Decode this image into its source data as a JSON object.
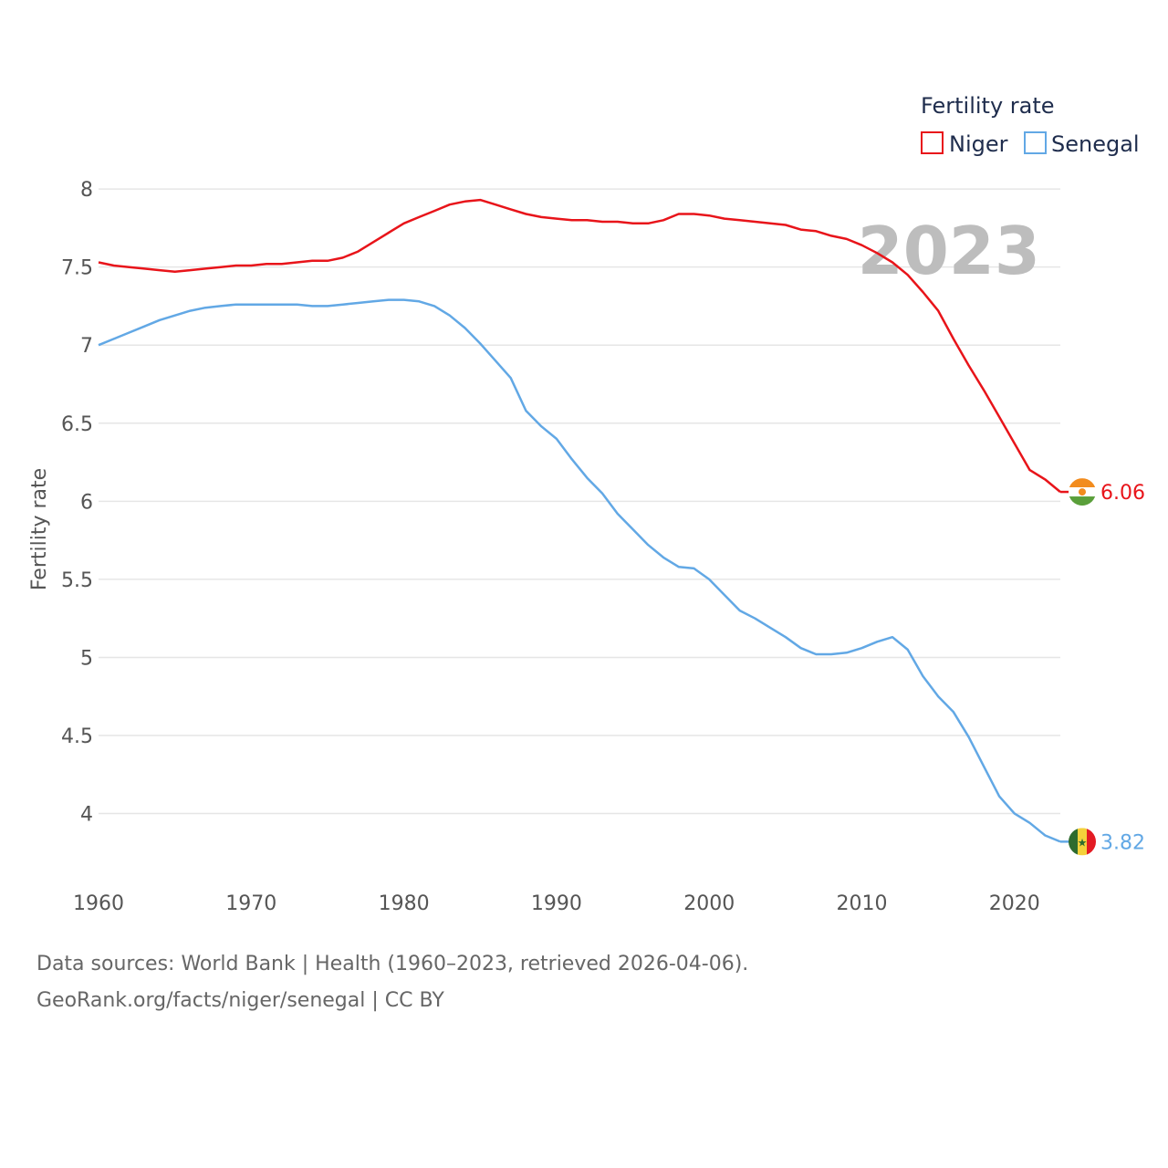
{
  "chart_data": {
    "type": "line",
    "ylabel": "Fertility rate",
    "ylim": [
      3.6,
      8.1
    ],
    "xlim": [
      1960,
      2023
    ],
    "grid": true,
    "legend": {
      "title": "Fertility rate",
      "placement": "top-right"
    },
    "highlight_year": "2023",
    "y_ticks": [
      "4",
      "4.5",
      "5",
      "5.5",
      "6",
      "6.5",
      "7",
      "7.5",
      "8"
    ],
    "x_ticks": [
      "1960",
      "1970",
      "1980",
      "1990",
      "2000",
      "2010",
      "2020"
    ],
    "x": [
      1960,
      1961,
      1962,
      1963,
      1964,
      1965,
      1966,
      1967,
      1968,
      1969,
      1970,
      1971,
      1972,
      1973,
      1974,
      1975,
      1976,
      1977,
      1978,
      1979,
      1980,
      1981,
      1982,
      1983,
      1984,
      1985,
      1986,
      1987,
      1988,
      1989,
      1990,
      1991,
      1992,
      1993,
      1994,
      1995,
      1996,
      1997,
      1998,
      1999,
      2000,
      2001,
      2002,
      2003,
      2004,
      2005,
      2006,
      2007,
      2008,
      2009,
      2010,
      2011,
      2012,
      2013,
      2014,
      2015,
      2016,
      2017,
      2018,
      2019,
      2020,
      2021,
      2022,
      2023
    ],
    "series": [
      {
        "name": "Niger",
        "color": "#e8141a",
        "end_label": "6.06",
        "flag": "niger-flag-icon",
        "values": [
          7.53,
          7.51,
          7.5,
          7.49,
          7.48,
          7.47,
          7.48,
          7.49,
          7.5,
          7.51,
          7.51,
          7.52,
          7.52,
          7.53,
          7.54,
          7.54,
          7.56,
          7.6,
          7.66,
          7.72,
          7.78,
          7.82,
          7.86,
          7.9,
          7.92,
          7.93,
          7.9,
          7.87,
          7.84,
          7.82,
          7.81,
          7.8,
          7.8,
          7.79,
          7.79,
          7.78,
          7.78,
          7.8,
          7.84,
          7.84,
          7.83,
          7.81,
          7.8,
          7.79,
          7.78,
          7.77,
          7.74,
          7.73,
          7.7,
          7.68,
          7.64,
          7.59,
          7.53,
          7.45,
          7.34,
          7.22,
          7.04,
          6.87,
          6.71,
          6.54,
          6.37,
          6.2,
          6.14,
          6.06
        ]
      },
      {
        "name": "Senegal",
        "color": "#62a8e5",
        "end_label": "3.82",
        "flag": "senegal-flag-icon",
        "values": [
          7.0,
          7.04,
          7.08,
          7.12,
          7.16,
          7.19,
          7.22,
          7.24,
          7.25,
          7.26,
          7.26,
          7.26,
          7.26,
          7.26,
          7.25,
          7.25,
          7.26,
          7.27,
          7.28,
          7.29,
          7.29,
          7.28,
          7.25,
          7.19,
          7.11,
          7.01,
          6.9,
          6.79,
          6.58,
          6.48,
          6.4,
          6.27,
          6.15,
          6.05,
          5.92,
          5.82,
          5.72,
          5.64,
          5.58,
          5.57,
          5.5,
          5.4,
          5.3,
          5.25,
          5.19,
          5.13,
          5.06,
          5.02,
          5.02,
          5.03,
          5.06,
          5.1,
          5.13,
          5.05,
          4.88,
          4.75,
          4.65,
          4.49,
          4.3,
          4.11,
          4.0,
          3.94,
          3.86,
          3.82
        ]
      }
    ]
  },
  "footer": {
    "source": "Data sources: World Bank | Health (1960–2023, retrieved 2026-04-06).",
    "attribution": "GeoRank.org/facts/niger/senegal | CC BY"
  }
}
